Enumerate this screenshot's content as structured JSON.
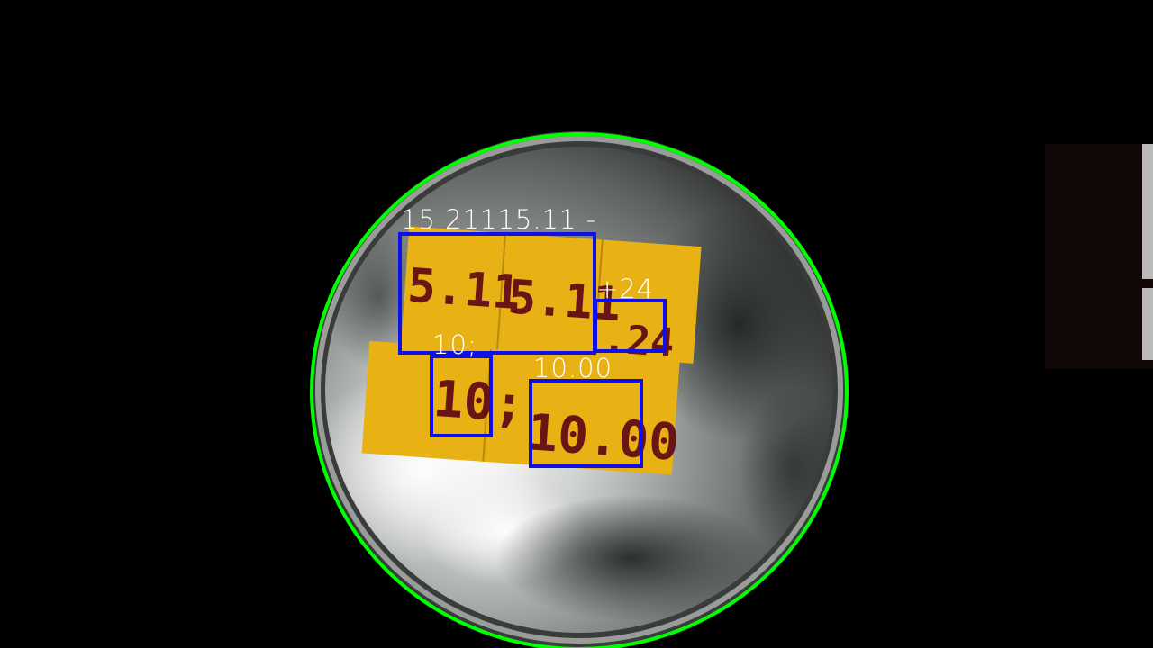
{
  "scene": {
    "description_free": true,
    "colors": {
      "background": "#000000",
      "dish_ring": "#00ff00",
      "box_stroke": "#1010e6",
      "label_text": "#ffffff",
      "tag_fill": "#e8b214",
      "tag_ink": "#6a1414"
    }
  },
  "tags": {
    "tag1": "5.11",
    "tag2": "5.11",
    "tag3": ".24",
    "tag4": "10;",
    "tag5": "10.00"
  },
  "detections": [
    {
      "label": "15 21115.11 -"
    },
    {
      "label": "+24"
    },
    {
      "label": "10;"
    },
    {
      "label": "10.00"
    }
  ]
}
